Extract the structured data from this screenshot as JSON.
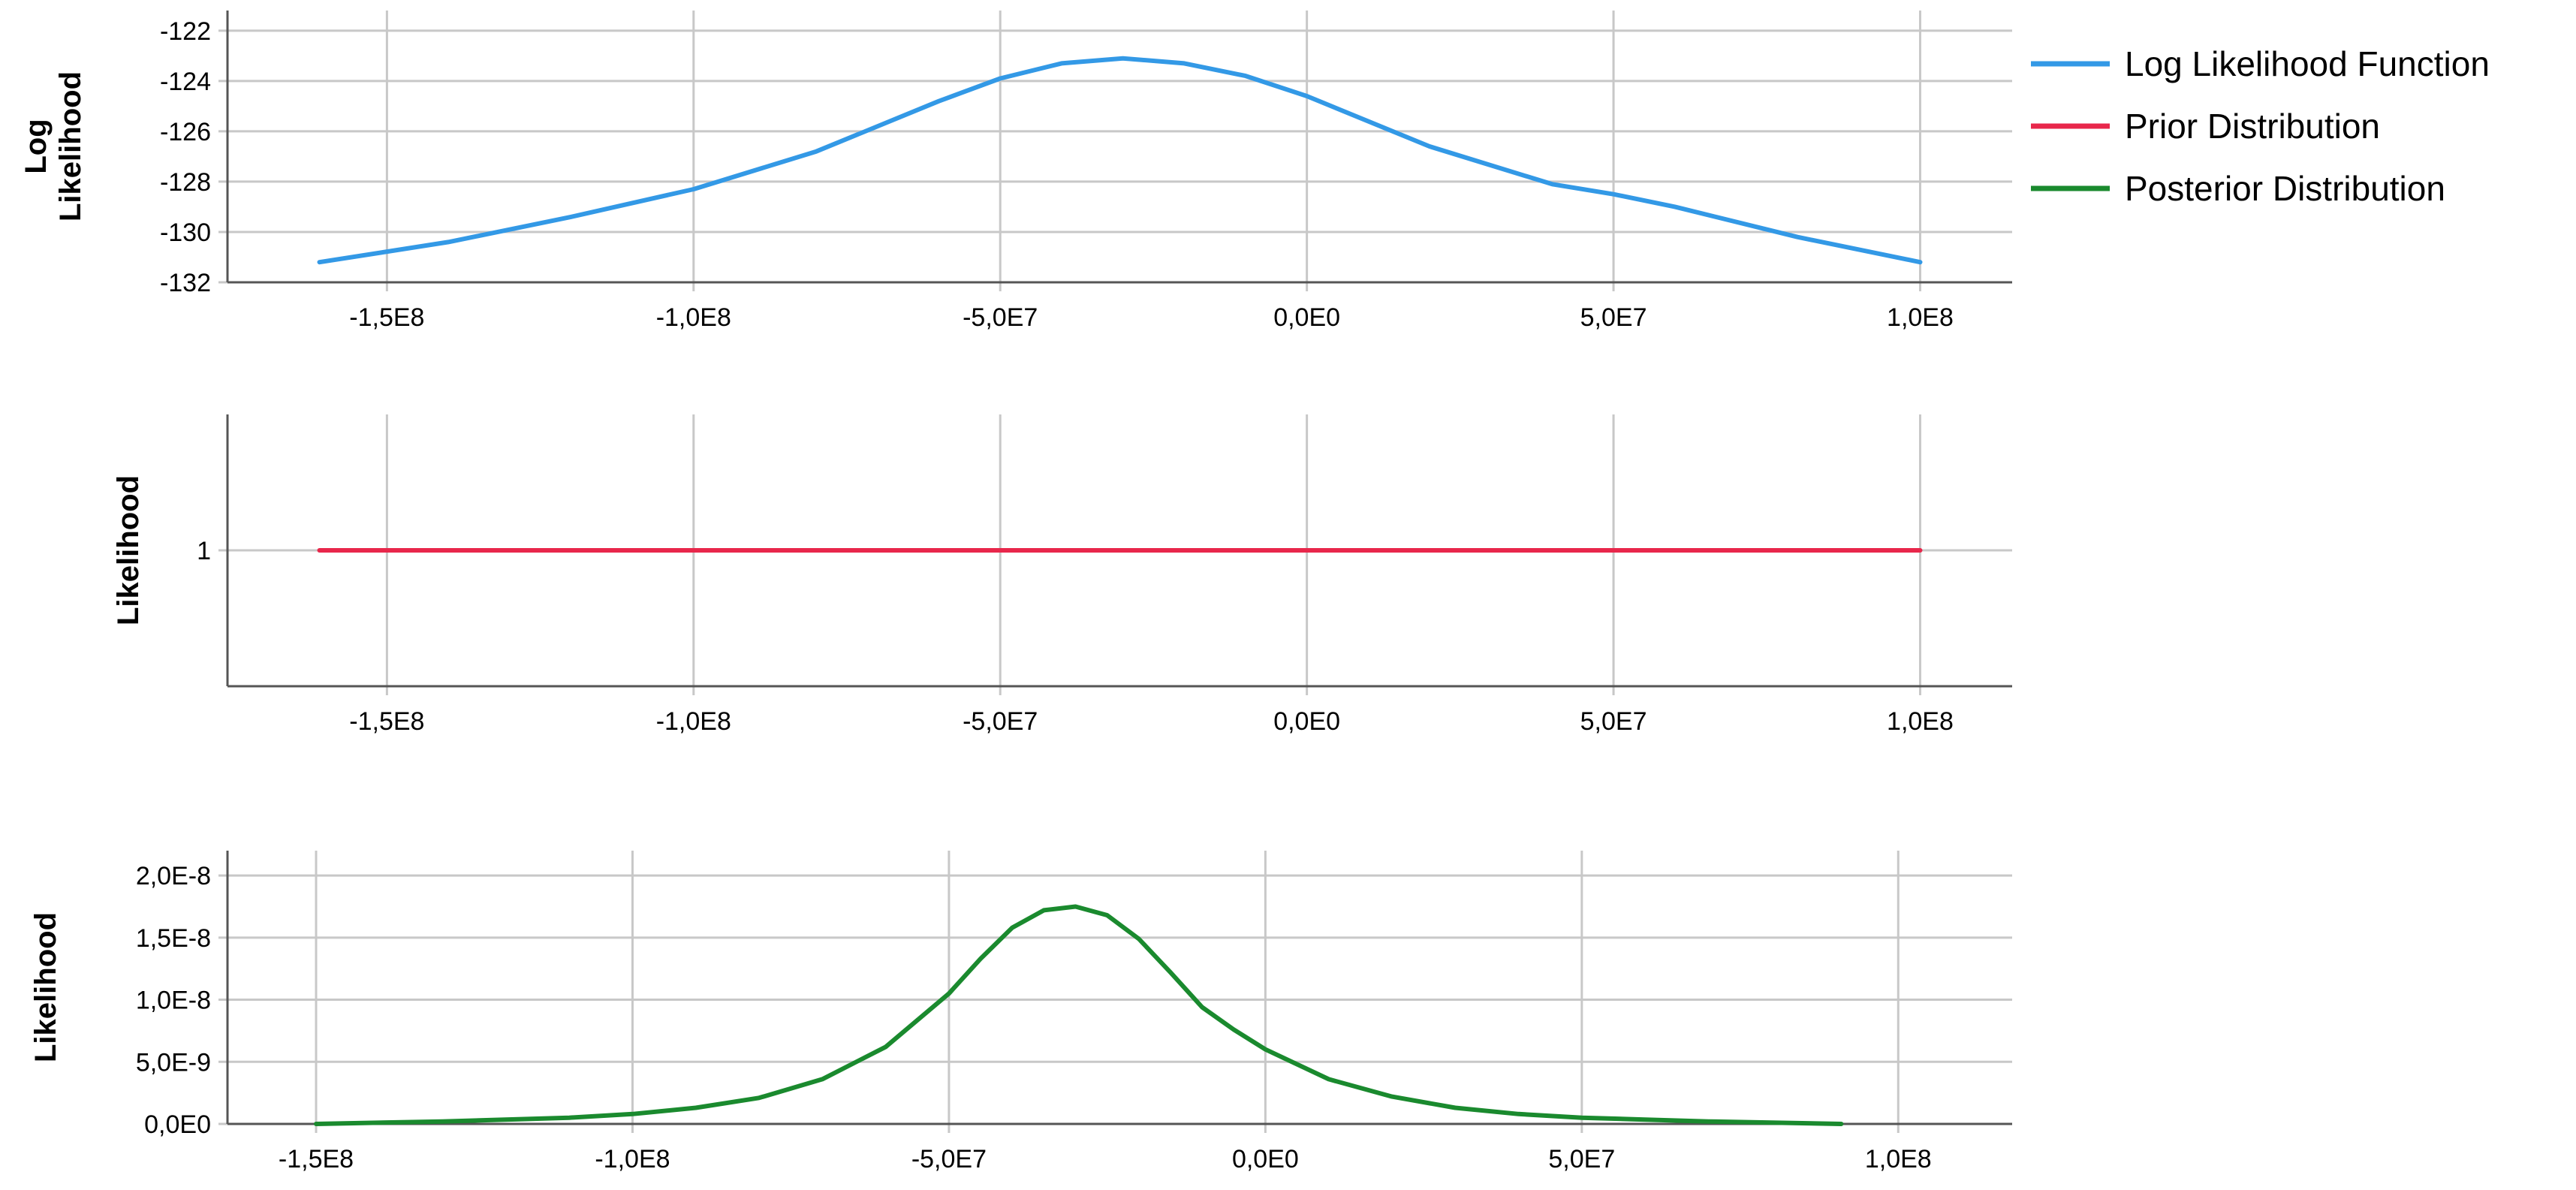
{
  "chart_data": [
    {
      "type": "line",
      "ylabel": "Log\nLikelihood",
      "x_ticks": [
        "-1,5E8",
        "-1,0E8",
        "-5,0E7",
        "0,0E0",
        "5,0E7",
        "1,0E8"
      ],
      "x_tick_values": [
        -150000000,
        -100000000,
        -50000000,
        0,
        50000000,
        100000000
      ],
      "xlim": [
        -176000000,
        115000000
      ],
      "y_ticks": [
        "-122",
        "-124",
        "-126",
        "-128",
        "-130",
        "-132"
      ],
      "y_tick_values": [
        -122,
        -124,
        -126,
        -128,
        -130,
        -132
      ],
      "ylim": [
        -132,
        -121.2
      ],
      "grid": true,
      "series": [
        {
          "name": "Log Likelihood Function",
          "color": "#3399e6",
          "x": [
            -161000000,
            -140000000,
            -120000000,
            -100000000,
            -80000000,
            -60000000,
            -50000000,
            -40000000,
            -30000000,
            -20000000,
            -10000000,
            0,
            20000000,
            40000000,
            50000000,
            60000000,
            80000000,
            100000000
          ],
          "y": [
            -131.2,
            -130.4,
            -129.4,
            -128.3,
            -126.8,
            -124.8,
            -123.9,
            -123.3,
            -123.1,
            -123.3,
            -123.8,
            -124.6,
            -126.6,
            -128.1,
            -128.5,
            -129.0,
            -130.2,
            -131.2
          ]
        }
      ]
    },
    {
      "type": "line",
      "ylabel": "Likelihood",
      "x_ticks": [
        "-1,5E8",
        "-1,0E8",
        "-5,0E7",
        "0,0E0",
        "5,0E7",
        "1,0E8"
      ],
      "x_tick_values": [
        -150000000,
        -100000000,
        -50000000,
        0,
        50000000,
        100000000
      ],
      "xlim": [
        -176000000,
        115000000
      ],
      "y_ticks": [
        "1"
      ],
      "y_tick_values": [
        1
      ],
      "ylim": [
        0,
        2
      ],
      "grid": true,
      "series": [
        {
          "name": "Prior Distribution",
          "color": "#e8274b",
          "x": [
            -161000000,
            100000000
          ],
          "y": [
            1,
            1
          ]
        }
      ]
    },
    {
      "type": "line",
      "ylabel": "Likelihood",
      "x_ticks": [
        "-1,5E8",
        "-1,0E8",
        "-5,0E7",
        "0,0E0",
        "5,0E7",
        "1,0E8"
      ],
      "x_tick_values": [
        -150000000,
        -100000000,
        -50000000,
        0,
        50000000,
        100000000
      ],
      "xlim": [
        -164000000,
        118000000
      ],
      "y_ticks": [
        "2,0E-8",
        "1,5E-8",
        "1,0E-8",
        "5,0E-9",
        "0,0E0"
      ],
      "y_tick_values": [
        2e-08,
        1.5e-08,
        1e-08,
        5e-09,
        0
      ],
      "ylim": [
        0,
        2.2e-08
      ],
      "grid": true,
      "series": [
        {
          "name": "Posterior Distribution",
          "color": "#1a8a2e",
          "x": [
            -150000000,
            -130000000,
            -110000000,
            -100000000,
            -90000000,
            -80000000,
            -70000000,
            -60000000,
            -50000000,
            -45000000,
            -40000000,
            -35000000,
            -30000000,
            -25000000,
            -20000000,
            -15000000,
            -10000000,
            -5000000,
            0,
            10000000,
            20000000,
            30000000,
            40000000,
            50000000,
            60000000,
            70000000,
            80000000,
            91000000
          ],
          "y": [
            0.0,
            2e-10,
            5e-10,
            8e-10,
            1.3e-09,
            2.1e-09,
            3.6e-09,
            6.2e-09,
            1.05e-08,
            1.33e-08,
            1.58e-08,
            1.72e-08,
            1.75e-08,
            1.68e-08,
            1.49e-08,
            1.22e-08,
            9.4e-09,
            7.6e-09,
            6e-09,
            3.6e-09,
            2.2e-09,
            1.3e-09,
            8e-10,
            5e-10,
            3.5e-10,
            2e-10,
            1e-10,
            0.0
          ]
        }
      ]
    }
  ],
  "legend": {
    "placement": "top-right",
    "items": [
      {
        "label": "Log Likelihood Function",
        "color": "#3399e6"
      },
      {
        "label": "Prior Distribution",
        "color": "#e8274b"
      },
      {
        "label": "Posterior Distribution",
        "color": "#1a8a2e"
      }
    ]
  }
}
